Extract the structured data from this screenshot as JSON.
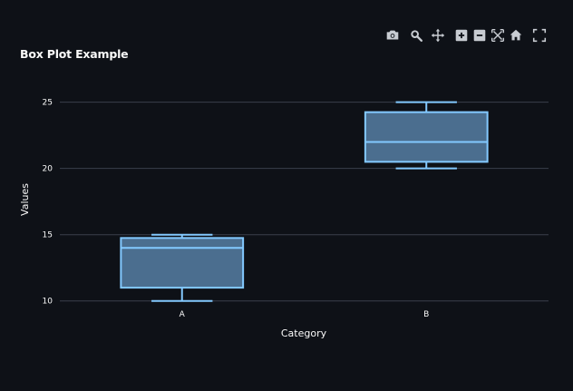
{
  "modebar": {
    "icons": [
      "camera-icon",
      "zoom-icon",
      "pan-icon",
      "zoom-in-icon",
      "zoom-out-icon",
      "autoscale-icon",
      "home-icon",
      "fullscreen-icon"
    ],
    "color": "#c8ccd2"
  },
  "colors": {
    "background": "#0e1117",
    "grid": "#3a3f4b",
    "box_fill": "#4b6e8f",
    "box_line": "#83c9ff",
    "text": "#fafafa"
  },
  "chart_data": {
    "type": "box",
    "title": "Box Plot Example",
    "xlabel": "Category",
    "ylabel": "Values",
    "categories": [
      "A",
      "B"
    ],
    "boxes": [
      {
        "category": "A",
        "min": 10,
        "q1": 11,
        "median": 14,
        "q3": 14.75,
        "max": 15
      },
      {
        "category": "B",
        "min": 20,
        "q1": 20.5,
        "median": 22,
        "q3": 24.25,
        "max": 25
      }
    ],
    "yticks": [
      10,
      15,
      20,
      25
    ],
    "ylim": [
      9.5,
      25.8
    ],
    "grid": true
  }
}
